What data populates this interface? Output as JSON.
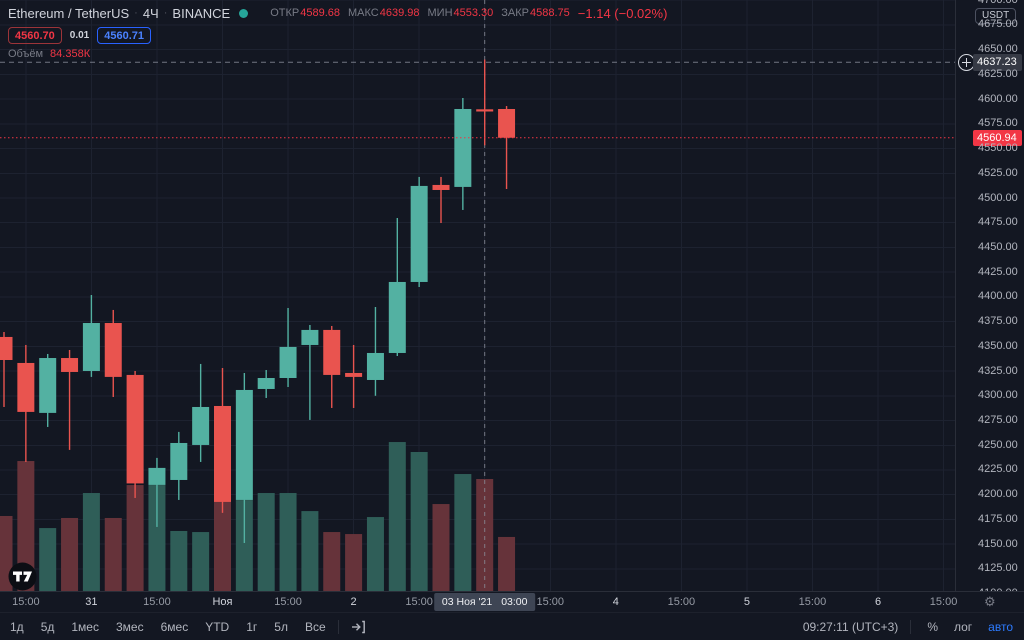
{
  "header": {
    "symbol": "Ethereum / TetherUS",
    "separator": "·",
    "interval": "4Ч",
    "exchange": "BINANCE",
    "ohlc": [
      {
        "label": "ОТКР",
        "value": "4589.68"
      },
      {
        "label": "МАКС",
        "value": "4639.98"
      },
      {
        "label": "МИН",
        "value": "4553.30"
      },
      {
        "label": "ЗАКР",
        "value": "4588.75"
      }
    ],
    "change": "−1.14 (−0.02%)",
    "sell_price": "4560.70",
    "spread": "0.01",
    "buy_price": "4560.71",
    "volume_label": "Объём",
    "volume_value": "84.358К"
  },
  "price_axis": {
    "currency_badge": "USDT",
    "crosshair_price": "4637.23",
    "last_price": "4560.94",
    "tick_min": 4100,
    "tick_max": 4700,
    "tick_step": 25
  },
  "time_axis": {
    "labels": [
      "15:00",
      "31",
      "15:00",
      "Ноя",
      "15:00",
      "2",
      "15:00",
      "",
      "15:00",
      "4",
      "15:00",
      "5",
      "15:00",
      "6",
      "15:00"
    ],
    "major_flags": [
      false,
      true,
      false,
      true,
      false,
      true,
      false,
      false,
      false,
      true,
      false,
      true,
      false,
      true,
      false
    ],
    "crosshair_date": "03 Ноя '21",
    "crosshair_time": "03:00"
  },
  "toolbar": {
    "ranges": [
      "1д",
      "5д",
      "1мес",
      "3мес",
      "6мес",
      "YTD",
      "1г",
      "5л",
      "Все"
    ],
    "clock": "09:27:11 (UTC+3)",
    "percent_label": "%",
    "log_label": "лог",
    "auto_label": "авто"
  },
  "icons": {
    "gear": "⚙"
  },
  "colors": {
    "background": "#131722",
    "up": "#53b1a2",
    "down": "#e9544f",
    "volume_up": "#2f5e58",
    "volume_down": "#66333a",
    "grid": "#1d2230",
    "crosshair": "#8a8e99",
    "last_price_line": "#f23645",
    "accent_blue": "#2962ff",
    "badge_bg": "#363a45",
    "axis_text": "#b2b5be"
  },
  "chart_data": {
    "type": "candlestick+volume",
    "title": "Ethereum / TetherUS 4Ч BINANCE",
    "ylabel": "USDT",
    "ylim": [
      4100,
      4700
    ],
    "grid": true,
    "hovered_index": 22,
    "last_price": 4560.94,
    "crosshair": {
      "price": 4637.23,
      "time": "03 Ноя '21 03:00"
    },
    "volume_unit": "K",
    "candles": [
      {
        "t": "30 Окт 11:00",
        "o": 4359.5,
        "h": 4364.5,
        "l": 4288.7,
        "c": 4336.2,
        "v": 56.5
      },
      {
        "t": "30 Окт 15:00",
        "o": 4333.2,
        "h": 4351.4,
        "l": 4233.1,
        "c": 4283.7,
        "v": 97.9
      },
      {
        "t": "30 Окт 19:00",
        "o": 4282.7,
        "h": 4342.3,
        "l": 4268.5,
        "c": 4338.2,
        "v": 47.4
      },
      {
        "t": "30 Окт 23:00",
        "o": 4338.2,
        "h": 4346.3,
        "l": 4245.3,
        "c": 4324.1,
        "v": 55.0
      },
      {
        "t": "31 Окт 03:00",
        "o": 4325.1,
        "h": 4401.9,
        "l": 4319.1,
        "c": 4373.6,
        "v": 73.8
      },
      {
        "t": "31 Окт 07:00",
        "o": 4373.6,
        "h": 4386.8,
        "l": 4298.8,
        "c": 4319.1,
        "v": 55.0
      },
      {
        "t": "31 Окт 11:00",
        "o": 4321.1,
        "h": 4325.1,
        "l": 4196.7,
        "c": 4211.4,
        "v": 79.8
      },
      {
        "t": "31 Окт 15:00",
        "o": 4209.9,
        "h": 4237.2,
        "l": 4167.4,
        "c": 4227.1,
        "v": 79.8
      },
      {
        "t": "31 Окт 19:00",
        "o": 4214.9,
        "h": 4263.5,
        "l": 4194.7,
        "c": 4252.3,
        "v": 45.2
      },
      {
        "t": "31 Окт 23:00",
        "o": 4250.3,
        "h": 4332.2,
        "l": 4233.1,
        "c": 4288.7,
        "v": 44.4
      },
      {
        "t": "01 Ноя 03:00",
        "o": 4289.7,
        "h": 4328.1,
        "l": 4181.6,
        "c": 4192.7,
        "v": 67.8
      },
      {
        "t": "01 Ноя 07:00",
        "o": 4194.7,
        "h": 4323.1,
        "l": 4151.2,
        "c": 4305.9,
        "v": 68.5
      },
      {
        "t": "01 Ноя 11:00",
        "o": 4306.9,
        "h": 4326.1,
        "l": 4297.8,
        "c": 4318.0,
        "v": 73.8
      },
      {
        "t": "01 Ноя 15:00",
        "o": 4318.0,
        "h": 4388.8,
        "l": 4308.9,
        "c": 4349.4,
        "v": 73.8
      },
      {
        "t": "01 Ноя 19:00",
        "o": 4351.4,
        "h": 4371.6,
        "l": 4275.6,
        "c": 4366.6,
        "v": 60.2
      },
      {
        "t": "01 Ноя 23:00",
        "o": 4366.6,
        "h": 4370.6,
        "l": 4287.7,
        "c": 4321.1,
        "v": 44.4
      },
      {
        "t": "02 Ноя 03:00",
        "o": 4323.1,
        "h": 4351.4,
        "l": 4287.7,
        "c": 4319.1,
        "v": 42.9
      },
      {
        "t": "02 Ноя 07:00",
        "o": 4316.0,
        "h": 4389.8,
        "l": 4300.0,
        "c": 4343.3,
        "v": 55.7
      },
      {
        "t": "02 Ноя 11:00",
        "o": 4343.3,
        "h": 4479.8,
        "l": 4340.3,
        "c": 4415.1,
        "v": 112.2
      },
      {
        "t": "02 Ноя 15:00",
        "o": 4415.1,
        "h": 4521.3,
        "l": 4410.0,
        "c": 4512.2,
        "v": 104.7
      },
      {
        "t": "02 Ноя 19:00",
        "o": 4513.2,
        "h": 4521.3,
        "l": 4474.7,
        "c": 4508.1,
        "v": 65.5
      },
      {
        "t": "02 Ноя 23:00",
        "o": 4511.2,
        "h": 4601.1,
        "l": 4487.9,
        "c": 4590.0,
        "v": 88.1
      },
      {
        "t": "03 Ноя 03:00",
        "o": 4589.68,
        "h": 4639.98,
        "l": 4553.3,
        "c": 4588.75,
        "v": 84.358
      },
      {
        "t": "03 Ноя 07:00",
        "o": 4589.99,
        "h": 4593.0,
        "l": 4509.1,
        "c": 4560.94,
        "v": 40.7
      }
    ]
  }
}
